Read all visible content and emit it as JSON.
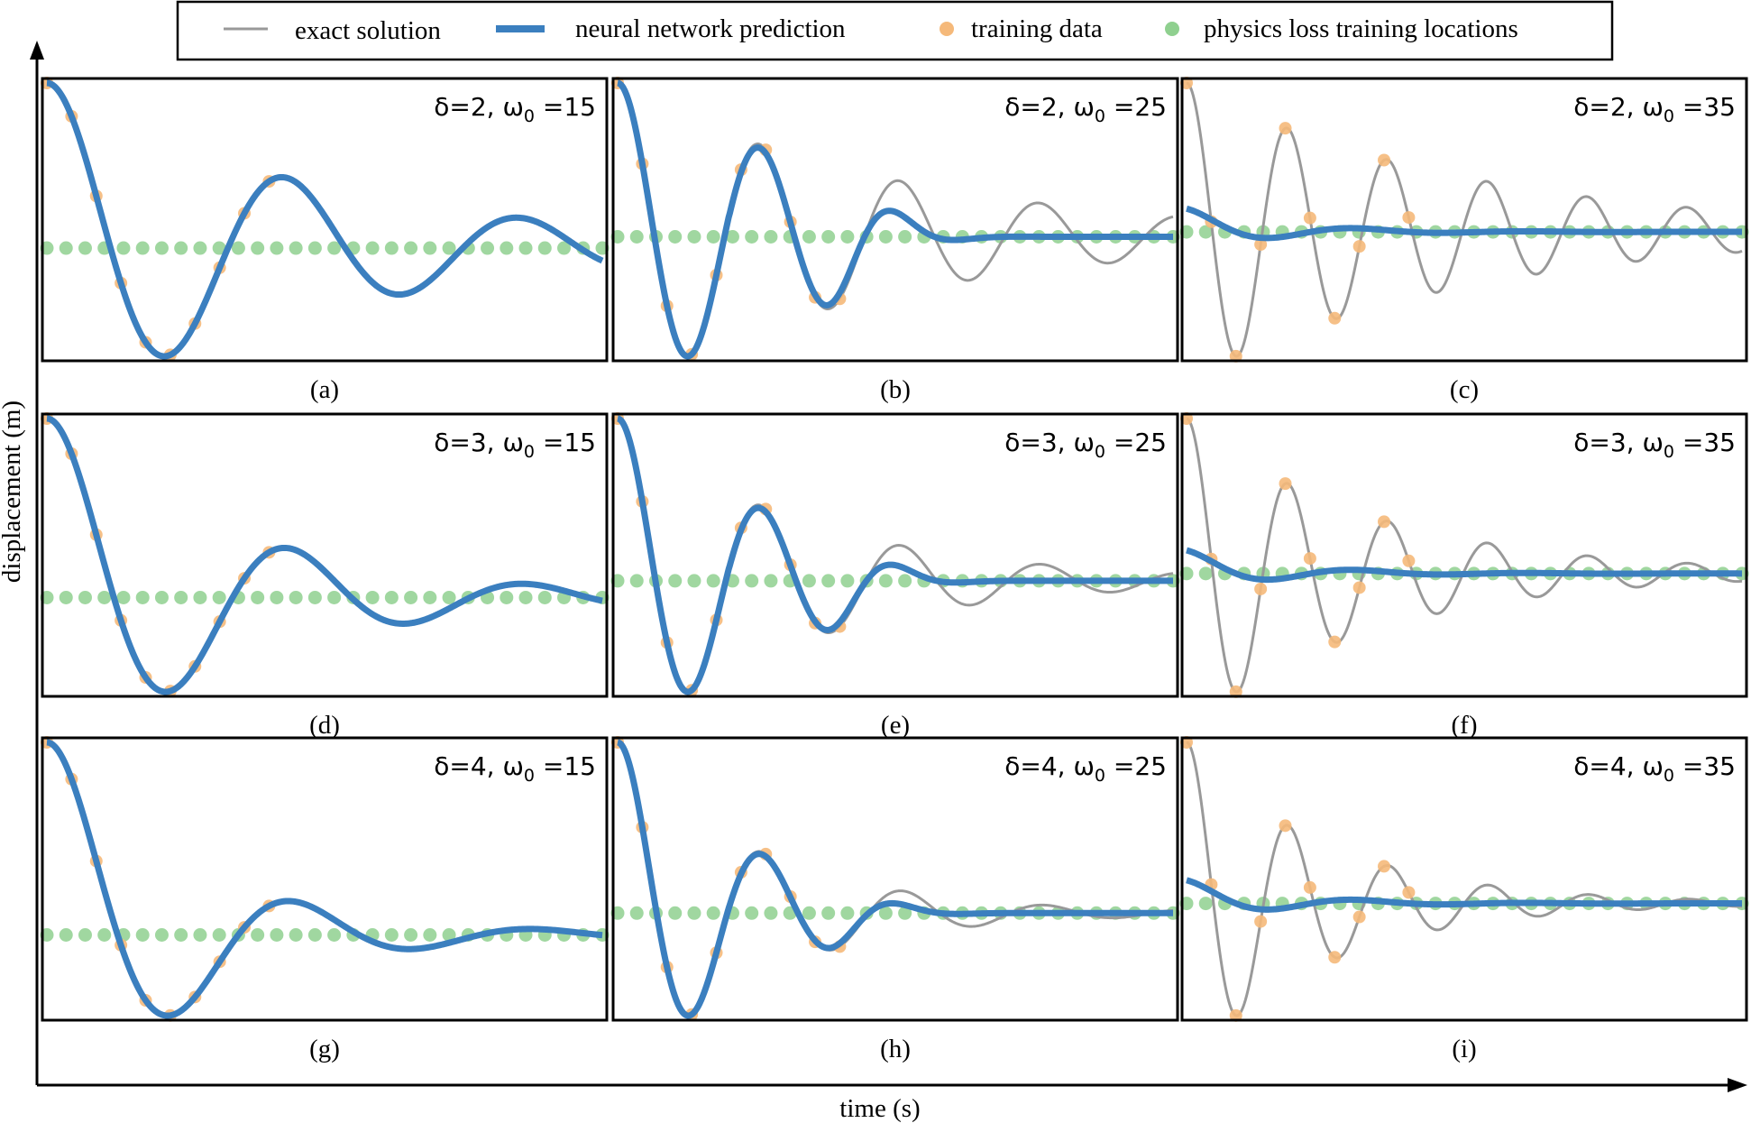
{
  "figure": {
    "xlabel": "time (s)",
    "ylabel": "displacement (m)"
  },
  "legend": {
    "position": "top",
    "entries": [
      {
        "label": "exact solution",
        "color": "#999999",
        "marker": "line"
      },
      {
        "label": "neural network prediction",
        "color": "#3b7fbf",
        "marker": "thick-line"
      },
      {
        "label": "training data",
        "color": "#f5b97a",
        "marker": "dot"
      },
      {
        "label": "physics loss training locations",
        "color": "#8fd08f",
        "marker": "dot"
      }
    ]
  },
  "colors": {
    "exact": "#999999",
    "nn": "#3b7fbf",
    "training": "#f5b97a",
    "physics": "#8fd08f"
  },
  "chart_data": [
    {
      "panel": "a",
      "caption": "(a)",
      "annotation": {
        "delta_text": "δ=2,",
        "omega_text": "ω",
        "omega_sub": "0",
        "omega_value": "=15"
      },
      "type": "line",
      "delta": 2,
      "omega0": 15,
      "xlim": [
        0,
        1
      ],
      "nn_fit": "exact",
      "training_points": 10,
      "physics_points": 30
    },
    {
      "panel": "b",
      "caption": "(b)",
      "annotation": {
        "delta_text": "δ=2,",
        "omega_text": "ω",
        "omega_sub": "0",
        "omega_value": "=25"
      },
      "type": "line",
      "delta": 2,
      "omega0": 25,
      "xlim": [
        0,
        1
      ],
      "nn_fit": "partial",
      "training_points": 10,
      "physics_points": 30
    },
    {
      "panel": "c",
      "caption": "(c)",
      "annotation": {
        "delta_text": "δ=2,",
        "omega_text": "ω",
        "omega_sub": "0",
        "omega_value": "=35"
      },
      "type": "line",
      "delta": 2,
      "omega0": 35,
      "xlim": [
        0,
        1
      ],
      "nn_fit": "failed",
      "training_points": 10,
      "physics_points": 30
    },
    {
      "panel": "d",
      "caption": "(d)",
      "annotation": {
        "delta_text": "δ=3,",
        "omega_text": "ω",
        "omega_sub": "0",
        "omega_value": "=15"
      },
      "type": "line",
      "delta": 3,
      "omega0": 15,
      "xlim": [
        0,
        1
      ],
      "nn_fit": "exact",
      "training_points": 10,
      "physics_points": 30
    },
    {
      "panel": "e",
      "caption": "(e)",
      "annotation": {
        "delta_text": "δ=3,",
        "omega_text": "ω",
        "omega_sub": "0",
        "omega_value": "=25"
      },
      "type": "line",
      "delta": 3,
      "omega0": 25,
      "xlim": [
        0,
        1
      ],
      "nn_fit": "partial",
      "training_points": 10,
      "physics_points": 30
    },
    {
      "panel": "f",
      "caption": "(f)",
      "annotation": {
        "delta_text": "δ=3,",
        "omega_text": "ω",
        "omega_sub": "0",
        "omega_value": "=35"
      },
      "type": "line",
      "delta": 3,
      "omega0": 35,
      "xlim": [
        0,
        1
      ],
      "nn_fit": "failed",
      "training_points": 10,
      "physics_points": 30
    },
    {
      "panel": "g",
      "caption": "(g)",
      "annotation": {
        "delta_text": "δ=4,",
        "omega_text": "ω",
        "omega_sub": "0",
        "omega_value": "=15"
      },
      "type": "line",
      "delta": 4,
      "omega0": 15,
      "xlim": [
        0,
        1
      ],
      "nn_fit": "exact",
      "training_points": 10,
      "physics_points": 30
    },
    {
      "panel": "h",
      "caption": "(h)",
      "annotation": {
        "delta_text": "δ=4,",
        "omega_text": "ω",
        "omega_sub": "0",
        "omega_value": "=25"
      },
      "type": "line",
      "delta": 4,
      "omega0": 25,
      "xlim": [
        0,
        1
      ],
      "nn_fit": "partial",
      "training_points": 10,
      "physics_points": 30
    },
    {
      "panel": "i",
      "caption": "(i)",
      "annotation": {
        "delta_text": "δ=4,",
        "omega_text": "ω",
        "omega_sub": "0",
        "omega_value": "=35"
      },
      "type": "line",
      "delta": 4,
      "omega0": 35,
      "xlim": [
        0,
        1
      ],
      "nn_fit": "failed",
      "training_points": 10,
      "physics_points": 30
    }
  ]
}
